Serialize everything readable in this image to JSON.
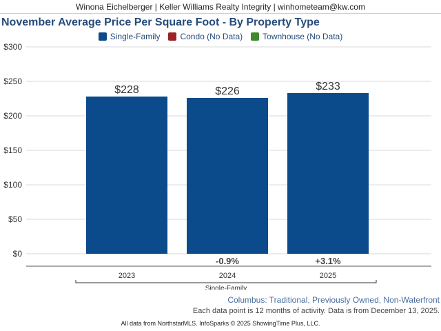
{
  "header": {
    "text": "Winona Eichelberger | Keller Williams Realty Integrity | winhometeam@kw.com"
  },
  "legend": [
    {
      "label": "Single-Family",
      "color": "#0b4a8b"
    },
    {
      "label": "Condo (No Data)",
      "color": "#9b2226"
    },
    {
      "label": "Townhouse (No Data)",
      "color": "#3f8a2e"
    }
  ],
  "subtitle": "Columbus: Traditional, Previously Owned, Non-Waterfront",
  "note": "Each data point is 12 months of activity. Data is from December 13, 2025.",
  "footer": "All data from NorthstarMLS. InfoSparks © 2025 ShowingTime Plus, LLC.",
  "chart_data": {
    "type": "bar",
    "title": "November Average Price Per Square Foot - By Property Type",
    "categories": [
      "2023",
      "2024",
      "2025"
    ],
    "group_label": "Single-Family",
    "series": [
      {
        "name": "Single-Family",
        "values": [
          228,
          226,
          233
        ],
        "value_labels": [
          "$228",
          "$226",
          "$233"
        ],
        "changes": [
          "",
          "-0.9%",
          "+3.1%"
        ]
      }
    ],
    "ylim": [
      0,
      300
    ],
    "yticks": [
      {
        "value": 0,
        "label": "$0"
      },
      {
        "value": 50,
        "label": "$50"
      },
      {
        "value": 100,
        "label": "$100"
      },
      {
        "value": 150,
        "label": "$150"
      },
      {
        "value": 200,
        "label": "$200"
      },
      {
        "value": 250,
        "label": "$250"
      },
      {
        "value": 300,
        "label": "$300"
      }
    ],
    "bar_color": "#0b4a8b",
    "grid": true,
    "legend_position": "top-center"
  }
}
